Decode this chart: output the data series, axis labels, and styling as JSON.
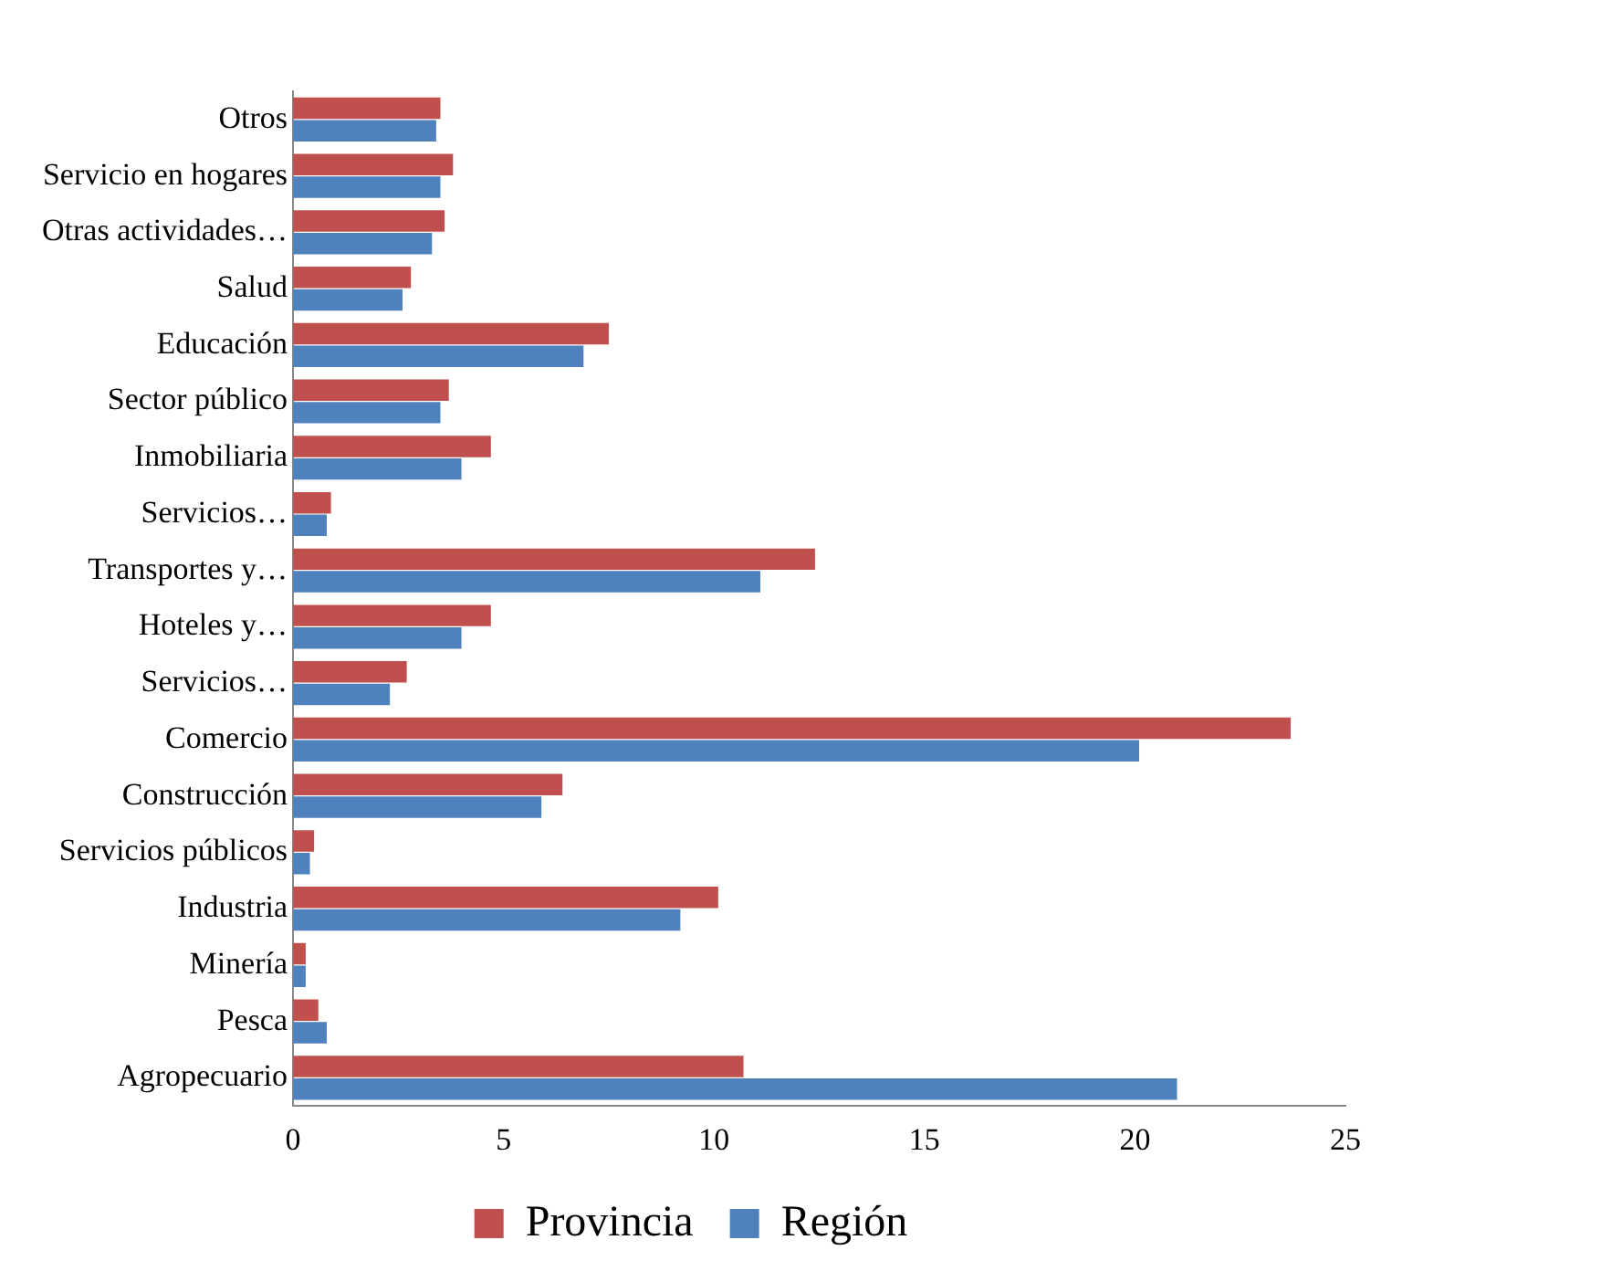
{
  "chart_data": {
    "type": "bar",
    "orientation": "horizontal",
    "categories": [
      "Otros",
      "Servicio en hogares",
      "Otras actividades…",
      "Salud",
      "Educación",
      "Sector público",
      "Inmobiliaria",
      "Servicios…",
      "Transportes y…",
      "Hoteles y…",
      "Servicios…",
      "Comercio",
      "Construcción",
      "Servicios públicos",
      "Industria",
      "Minería",
      "Pesca",
      "Agropecuario"
    ],
    "series": [
      {
        "name": "Provincia",
        "color": "#c0504d",
        "values": [
          3.5,
          3.8,
          3.6,
          2.8,
          7.5,
          3.7,
          4.7,
          0.9,
          12.4,
          4.7,
          2.7,
          23.7,
          6.4,
          0.5,
          10.1,
          0.3,
          0.6,
          10.7
        ]
      },
      {
        "name": "Región",
        "color": "#4f81bd",
        "values": [
          3.4,
          3.5,
          3.3,
          2.6,
          6.9,
          3.5,
          4.0,
          0.8,
          11.1,
          4.0,
          2.3,
          20.1,
          5.9,
          0.4,
          9.2,
          0.3,
          0.8,
          21.0
        ]
      }
    ],
    "xlim": [
      0,
      25
    ],
    "xticks": [
      0,
      5,
      10,
      15,
      20,
      25
    ],
    "grid": false,
    "legend": "bottom"
  }
}
